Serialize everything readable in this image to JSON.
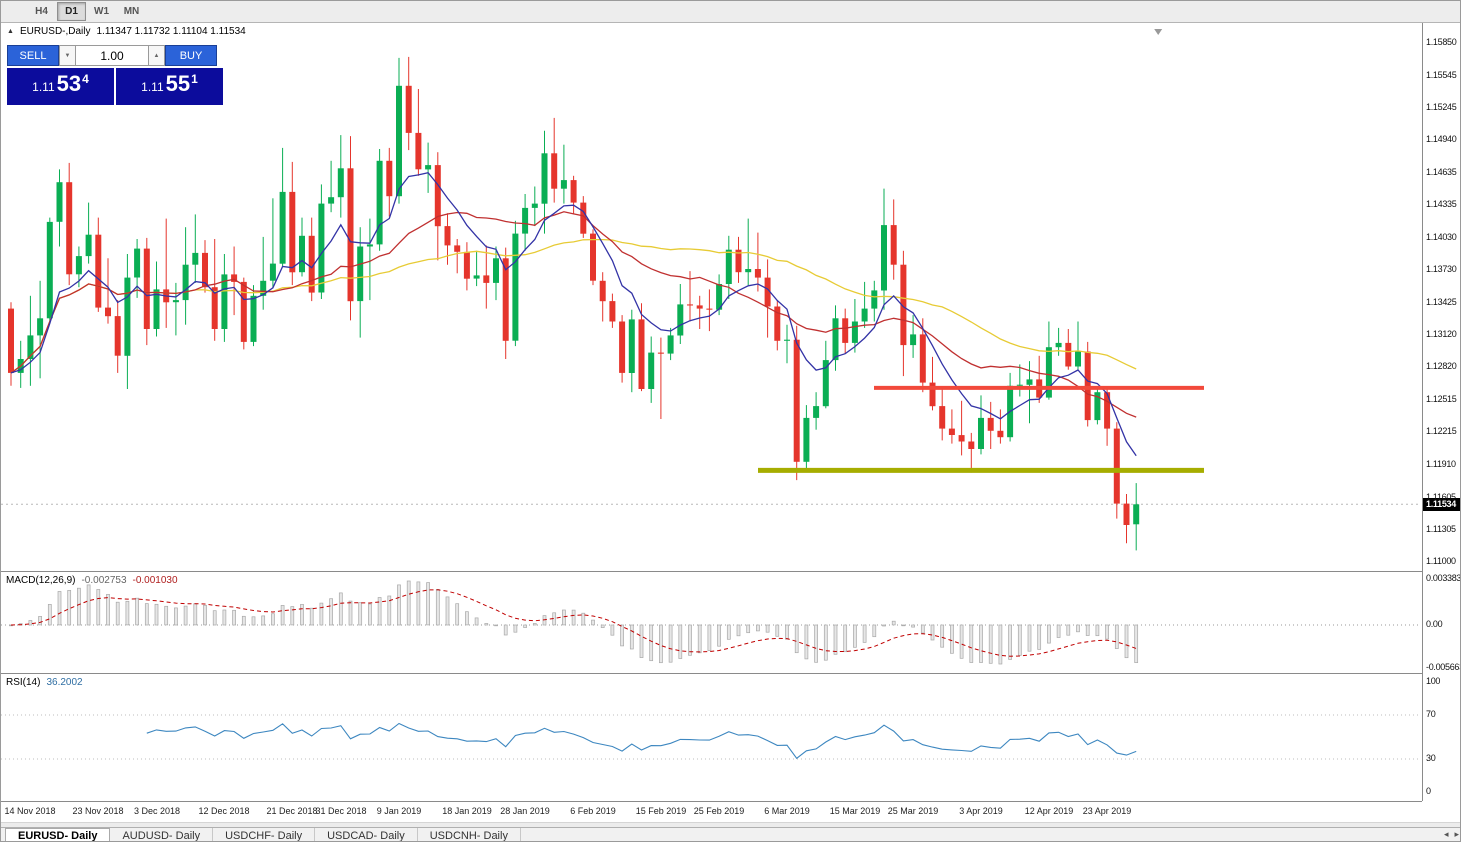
{
  "toolbar": {
    "timeframes": [
      {
        "label": "H4",
        "active": false
      },
      {
        "label": "D1",
        "active": true
      },
      {
        "label": "W1",
        "active": false
      },
      {
        "label": "MN",
        "active": false
      }
    ]
  },
  "chart": {
    "symbol_period": "EURUSD-,Daily",
    "ohlc": "1.11347 1.11732 1.11104 1.11534"
  },
  "icons": {
    "collapse": "▲",
    "down_arrow": "▼",
    "up_arrow": "▲",
    "scroll_left": "◂",
    "scroll_right": "▸"
  },
  "trade_panel": {
    "sell_label": "SELL",
    "buy_label": "BUY",
    "volume": "1.00",
    "sell_price": {
      "prefix": "1.11",
      "big": "53",
      "sup": "4"
    },
    "buy_price": {
      "prefix": "1.11",
      "big": "55",
      "sup": "1"
    }
  },
  "price_scale": {
    "current": "1.11534",
    "labels": [
      "1.15850",
      "1.15545",
      "1.15245",
      "1.14940",
      "1.14635",
      "1.14335",
      "1.14030",
      "1.13730",
      "1.13425",
      "1.13120",
      "1.12820",
      "1.12515",
      "1.12215",
      "1.11910",
      "1.11605",
      "1.11305",
      "1.11000"
    ]
  },
  "macd": {
    "name": "MACD(12,26,9)",
    "main": "-0.002753",
    "signal": "-0.001030",
    "scale_top": "0.003383",
    "scale_zero": "0.00",
    "scale_bottom": "-0.005663",
    "fast": 12,
    "slow": 26,
    "smoothing": 9
  },
  "rsi": {
    "name": "RSI(14)",
    "value": "36.2002",
    "period": 14,
    "scale": [
      {
        "value": 100,
        "text": "100"
      },
      {
        "value": 70,
        "text": "70"
      },
      {
        "value": 30,
        "text": "30"
      },
      {
        "value": 0,
        "text": "0"
      }
    ]
  },
  "tabs": {
    "items": [
      {
        "label": "EURUSD- Daily",
        "active": true
      },
      {
        "label": "AUDUSD- Daily",
        "active": false
      },
      {
        "label": "USDCHF- Daily",
        "active": false
      },
      {
        "label": "USDCAD- Daily",
        "active": false
      },
      {
        "label": "USDCNH- Daily",
        "active": false
      }
    ]
  },
  "chart_data": {
    "type": "candlestick",
    "symbol": "EURUSD-",
    "timeframe": "Daily",
    "current_bid": 1.11534,
    "price_range": {
      "top": 1.1597,
      "bottom": 1.1093
    },
    "colors": {
      "up": "#0aae54",
      "down": "#e5352c",
      "ma_fast": "#3333a6",
      "ma_mid": "#c03030",
      "ma_slow": "#e7cb35",
      "resistance": "#f2493b",
      "support": "#a6ad00",
      "macd_hist_fill": "#e6e6e6",
      "macd_hist_stroke": "#a8a8a8",
      "macd_signal": "#c00000",
      "rsi_line": "#3d87c0"
    },
    "moving_averages": [
      {
        "name": "ma-fast",
        "type": "ema",
        "period": 8
      },
      {
        "name": "ma-mid",
        "type": "sma",
        "period": 20
      },
      {
        "name": "ma-slow",
        "type": "sma",
        "period": 45
      }
    ],
    "overlays": {
      "resistance_line": {
        "price": 1.1262,
        "from_index": 89,
        "to_index": 123
      },
      "support_line": {
        "price": 1.1185,
        "from_index": 77,
        "to_index": 123
      }
    },
    "date_labels": [
      {
        "text": "14 Nov 2018",
        "index": 2
      },
      {
        "text": "23 Nov 2018",
        "index": 9
      },
      {
        "text": "3 Dec 2018",
        "index": 15
      },
      {
        "text": "12 Dec 2018",
        "index": 22
      },
      {
        "text": "21 Dec 2018",
        "index": 29
      },
      {
        "text": "31 Dec 2018",
        "index": 34
      },
      {
        "text": "9 Jan 2019",
        "index": 40
      },
      {
        "text": "18 Jan 2019",
        "index": 47
      },
      {
        "text": "28 Jan 2019",
        "index": 53
      },
      {
        "text": "6 Feb 2019",
        "index": 60
      },
      {
        "text": "15 Feb 2019",
        "index": 67
      },
      {
        "text": "25 Feb 2019",
        "index": 73
      },
      {
        "text": "6 Mar 2019",
        "index": 80
      },
      {
        "text": "15 Mar 2019",
        "index": 87
      },
      {
        "text": "25 Mar 2019",
        "index": 93
      },
      {
        "text": "3 Apr 2019",
        "index": 100
      },
      {
        "text": "12 Apr 2019",
        "index": 107
      },
      {
        "text": "23 Apr 2019",
        "index": 113
      }
    ],
    "candles": [
      [
        1.1336,
        1.1342,
        1.1264,
        1.1276
      ],
      [
        1.1276,
        1.1306,
        1.1262,
        1.1289
      ],
      [
        1.1289,
        1.1348,
        1.1264,
        1.1311
      ],
      [
        1.1311,
        1.1362,
        1.1271,
        1.1327
      ],
      [
        1.1327,
        1.1421,
        1.1322,
        1.1417
      ],
      [
        1.1417,
        1.1466,
        1.1394,
        1.1454
      ],
      [
        1.1454,
        1.1472,
        1.1358,
        1.1368
      ],
      [
        1.1368,
        1.1394,
        1.1356,
        1.1385
      ],
      [
        1.1385,
        1.1435,
        1.1378,
        1.1405
      ],
      [
        1.1405,
        1.1421,
        1.1333,
        1.1337
      ],
      [
        1.1337,
        1.1383,
        1.1322,
        1.1329
      ],
      [
        1.1329,
        1.1344,
        1.1276,
        1.1292
      ],
      [
        1.1292,
        1.1387,
        1.1261,
        1.1365
      ],
      [
        1.1365,
        1.1401,
        1.1346,
        1.1392
      ],
      [
        1.1392,
        1.1402,
        1.1302,
        1.1317
      ],
      [
        1.1317,
        1.138,
        1.131,
        1.1354
      ],
      [
        1.1354,
        1.142,
        1.1318,
        1.1342
      ],
      [
        1.1342,
        1.136,
        1.1311,
        1.1344
      ],
      [
        1.1344,
        1.1412,
        1.1321,
        1.1377
      ],
      [
        1.1377,
        1.1424,
        1.136,
        1.1388
      ],
      [
        1.1388,
        1.14,
        1.1351,
        1.1356
      ],
      [
        1.1356,
        1.1401,
        1.1306,
        1.1317
      ],
      [
        1.1317,
        1.1387,
        1.1305,
        1.1368
      ],
      [
        1.1368,
        1.1394,
        1.133,
        1.1361
      ],
      [
        1.1361,
        1.1365,
        1.1298,
        1.1305
      ],
      [
        1.1305,
        1.1358,
        1.1301,
        1.1348
      ],
      [
        1.1348,
        1.1403,
        1.1335,
        1.1362
      ],
      [
        1.1362,
        1.1439,
        1.1355,
        1.1378
      ],
      [
        1.1378,
        1.1486,
        1.1375,
        1.1445
      ],
      [
        1.1445,
        1.1473,
        1.1358,
        1.137
      ],
      [
        1.137,
        1.1421,
        1.1366,
        1.1404
      ],
      [
        1.1404,
        1.1421,
        1.1343,
        1.1351
      ],
      [
        1.1351,
        1.1452,
        1.1345,
        1.1434
      ],
      [
        1.1434,
        1.1474,
        1.1426,
        1.144
      ],
      [
        1.144,
        1.1498,
        1.1421,
        1.1467
      ],
      [
        1.1467,
        1.1497,
        1.1325,
        1.1343
      ],
      [
        1.1343,
        1.1412,
        1.1309,
        1.1394
      ],
      [
        1.1394,
        1.142,
        1.1344,
        1.1396
      ],
      [
        1.1396,
        1.1485,
        1.139,
        1.1474
      ],
      [
        1.1474,
        1.1486,
        1.1422,
        1.1441
      ],
      [
        1.1441,
        1.157,
        1.1434,
        1.1544
      ],
      [
        1.1544,
        1.1571,
        1.1484,
        1.15
      ],
      [
        1.15,
        1.1541,
        1.146,
        1.1466
      ],
      [
        1.1466,
        1.1491,
        1.1444,
        1.147
      ],
      [
        1.147,
        1.1482,
        1.1381,
        1.1413
      ],
      [
        1.1413,
        1.1425,
        1.1377,
        1.1395
      ],
      [
        1.1395,
        1.1401,
        1.1369,
        1.1389
      ],
      [
        1.1389,
        1.1398,
        1.1353,
        1.1364
      ],
      [
        1.1364,
        1.139,
        1.1357,
        1.1367
      ],
      [
        1.1367,
        1.1395,
        1.1336,
        1.136
      ],
      [
        1.136,
        1.1394,
        1.1344,
        1.1383
      ],
      [
        1.1383,
        1.1393,
        1.1289,
        1.1306
      ],
      [
        1.1306,
        1.1418,
        1.1301,
        1.1406
      ],
      [
        1.1406,
        1.1443,
        1.139,
        1.143
      ],
      [
        1.143,
        1.145,
        1.1413,
        1.1434
      ],
      [
        1.1434,
        1.1502,
        1.1406,
        1.1481
      ],
      [
        1.1481,
        1.1514,
        1.1435,
        1.1448
      ],
      [
        1.1448,
        1.1489,
        1.1434,
        1.1456
      ],
      [
        1.1456,
        1.146,
        1.1424,
        1.1435
      ],
      [
        1.1435,
        1.1441,
        1.1402,
        1.1406
      ],
      [
        1.1406,
        1.141,
        1.1358,
        1.1362
      ],
      [
        1.1362,
        1.137,
        1.1324,
        1.1343
      ],
      [
        1.1343,
        1.135,
        1.1318,
        1.1324
      ],
      [
        1.1324,
        1.133,
        1.1267,
        1.1276
      ],
      [
        1.1276,
        1.1335,
        1.1258,
        1.1326
      ],
      [
        1.1326,
        1.1341,
        1.1259,
        1.1261
      ],
      [
        1.1261,
        1.131,
        1.1248,
        1.1295
      ],
      [
        1.1295,
        1.1309,
        1.1233,
        1.1294
      ],
      [
        1.1294,
        1.1318,
        1.1288,
        1.1311
      ],
      [
        1.1311,
        1.1359,
        1.1303,
        1.134
      ],
      [
        1.134,
        1.1371,
        1.1324,
        1.1339
      ],
      [
        1.1339,
        1.1348,
        1.1317,
        1.1336
      ],
      [
        1.1336,
        1.1354,
        1.1315,
        1.1335
      ],
      [
        1.1335,
        1.1368,
        1.133,
        1.1359
      ],
      [
        1.1359,
        1.1404,
        1.1345,
        1.1391
      ],
      [
        1.1391,
        1.1403,
        1.136,
        1.137
      ],
      [
        1.137,
        1.142,
        1.1358,
        1.1373
      ],
      [
        1.1373,
        1.1407,
        1.1352,
        1.1365
      ],
      [
        1.1365,
        1.1382,
        1.1309,
        1.1338
      ],
      [
        1.1338,
        1.1344,
        1.1297,
        1.1306
      ],
      [
        1.1306,
        1.1321,
        1.1285,
        1.1307
      ],
      [
        1.1307,
        1.132,
        1.1176,
        1.1193
      ],
      [
        1.1193,
        1.1246,
        1.1185,
        1.1234
      ],
      [
        1.1234,
        1.1258,
        1.1223,
        1.1245
      ],
      [
        1.1245,
        1.1306,
        1.1243,
        1.1288
      ],
      [
        1.1288,
        1.1339,
        1.1278,
        1.1327
      ],
      [
        1.1327,
        1.1336,
        1.1294,
        1.1304
      ],
      [
        1.1304,
        1.1345,
        1.1295,
        1.1324
      ],
      [
        1.1324,
        1.1361,
        1.1318,
        1.1336
      ],
      [
        1.1336,
        1.1362,
        1.1324,
        1.1353
      ],
      [
        1.1353,
        1.1448,
        1.1335,
        1.1414
      ],
      [
        1.1414,
        1.1438,
        1.1363,
        1.1377
      ],
      [
        1.1377,
        1.139,
        1.1273,
        1.1302
      ],
      [
        1.1302,
        1.133,
        1.129,
        1.1312
      ],
      [
        1.1312,
        1.1327,
        1.1258,
        1.1267
      ],
      [
        1.1267,
        1.1291,
        1.1241,
        1.1245
      ],
      [
        1.1245,
        1.1262,
        1.1213,
        1.1224
      ],
      [
        1.1224,
        1.1242,
        1.121,
        1.1218
      ],
      [
        1.1218,
        1.125,
        1.1199,
        1.1212
      ],
      [
        1.1212,
        1.122,
        1.1183,
        1.1205
      ],
      [
        1.1205,
        1.1255,
        1.12,
        1.1234
      ],
      [
        1.1234,
        1.1249,
        1.1205,
        1.1222
      ],
      [
        1.1222,
        1.1242,
        1.121,
        1.1216
      ],
      [
        1.1216,
        1.1276,
        1.1212,
        1.1264
      ],
      [
        1.1264,
        1.1284,
        1.1254,
        1.1265
      ],
      [
        1.1265,
        1.1287,
        1.1229,
        1.127
      ],
      [
        1.127,
        1.1292,
        1.1248,
        1.1253
      ],
      [
        1.1253,
        1.1324,
        1.1251,
        1.13
      ],
      [
        1.13,
        1.1318,
        1.1292,
        1.1304
      ],
      [
        1.1304,
        1.1317,
        1.1279,
        1.1282
      ],
      [
        1.1282,
        1.1324,
        1.1279,
        1.1296
      ],
      [
        1.1296,
        1.1305,
        1.1226,
        1.1232
      ],
      [
        1.1232,
        1.1263,
        1.1228,
        1.1258
      ],
      [
        1.1258,
        1.1263,
        1.1208,
        1.1224
      ],
      [
        1.1224,
        1.123,
        1.114,
        1.1154
      ],
      [
        1.1154,
        1.1163,
        1.1117,
        1.1134
      ],
      [
        1.11347,
        1.11732,
        1.11104,
        1.11534
      ]
    ]
  }
}
